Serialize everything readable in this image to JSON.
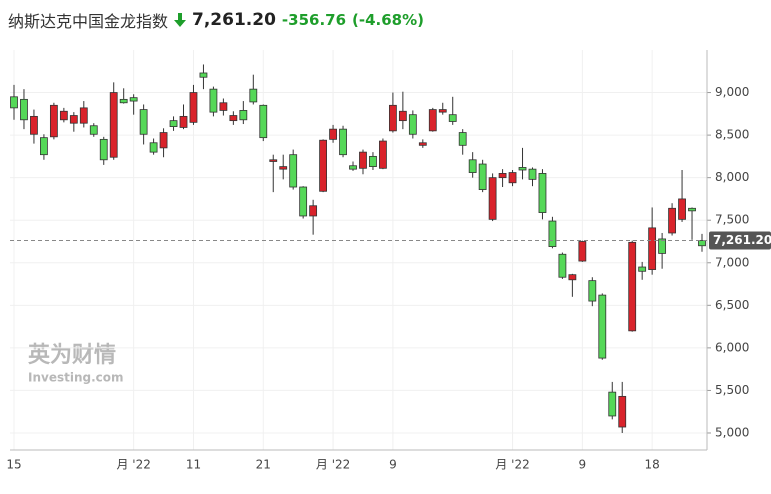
{
  "chart_data": {
    "type": "candlestick",
    "title": "纳斯达克中国金龙指数",
    "change": "-356.76",
    "change_pct": "(-4.68%)",
    "last_price": {
      "value": 7261.2,
      "label": "7,261.20"
    },
    "watermark": {
      "cn": "英为财情",
      "en": "Investing.com"
    },
    "categories": [
      "15",
      null,
      null,
      null,
      null,
      null,
      null,
      null,
      null,
      null,
      null,
      null,
      "月 '22",
      null,
      null,
      null,
      null,
      null,
      "11",
      null,
      null,
      null,
      null,
      null,
      null,
      "21",
      null,
      null,
      null,
      null,
      null,
      null,
      "月 '22",
      null,
      null,
      null,
      null,
      null,
      "9",
      null,
      null,
      null,
      null,
      null,
      null,
      null,
      null,
      null,
      null,
      null,
      "月 '22",
      null,
      null,
      null,
      null,
      null,
      null,
      "9",
      null,
      null,
      null,
      null,
      null,
      null,
      "18",
      null,
      null,
      null,
      null,
      null
    ],
    "open": [
      8820,
      8680,
      8720,
      8270,
      8850,
      8780,
      8730,
      8820,
      8510,
      8210,
      9000,
      8880,
      8900,
      8510,
      8300,
      8530,
      8600,
      8720,
      9000,
      9180,
      8770,
      8880,
      8730,
      8680,
      8890,
      8470,
      8210,
      8130,
      7890,
      7550,
      7670,
      8440,
      8570,
      8270,
      8100,
      8300,
      8130,
      8430,
      8850,
      8780,
      8510,
      8410,
      8800,
      8800,
      8660,
      8380,
      8060,
      7860,
      8000,
      8050,
      8060,
      8090,
      7980,
      7590,
      7190,
      6830,
      6860,
      7250,
      6550,
      5880,
      5200,
      5430,
      7240,
      6900,
      7410,
      7110,
      7640,
      7750,
      7610,
      7200
    ],
    "high": [
      9090,
      9040,
      8800,
      8510,
      8880,
      8820,
      8770,
      8900,
      8640,
      8480,
      9120,
      9050,
      8980,
      8860,
      8460,
      8580,
      8720,
      8860,
      9090,
      9330,
      9070,
      8930,
      8780,
      8900,
      9210,
      8860,
      8270,
      8270,
      8330,
      7900,
      7740,
      8450,
      8620,
      8610,
      8190,
      8330,
      8300,
      8460,
      9000,
      9010,
      8790,
      8450,
      8820,
      8880,
      8950,
      8570,
      8300,
      8210,
      8050,
      8100,
      8090,
      8350,
      8120,
      8100,
      7540,
      7120,
      6870,
      7260,
      6830,
      6640,
      5600,
      5600,
      7260,
      7010,
      7650,
      7350,
      7700,
      8090,
      7650,
      7340
    ],
    "low": [
      8680,
      8570,
      8400,
      8210,
      8450,
      8650,
      8540,
      8590,
      8480,
      8150,
      8210,
      8870,
      8740,
      8390,
      8270,
      8240,
      8550,
      8570,
      8620,
      9040,
      8720,
      8730,
      8620,
      8630,
      8860,
      8430,
      7830,
      7980,
      7860,
      7520,
      7330,
      7830,
      8410,
      8240,
      8080,
      8040,
      8090,
      8100,
      8530,
      8570,
      8460,
      8350,
      8540,
      8740,
      8620,
      8270,
      8000,
      7830,
      7490,
      7890,
      7900,
      7980,
      7900,
      7510,
      7170,
      6810,
      6600,
      7010,
      6490,
      5860,
      5160,
      5000,
      6190,
      6800,
      6860,
      6930,
      7320,
      7480,
      7270,
      7130
    ],
    "close": [
      8950,
      8920,
      8510,
      8470,
      8480,
      8680,
      8640,
      8640,
      8610,
      8450,
      8240,
      8920,
      8940,
      8800,
      8410,
      8350,
      8670,
      8590,
      8650,
      9230,
      9040,
      8790,
      8670,
      8790,
      9040,
      8850,
      8190,
      8100,
      8270,
      7890,
      7550,
      7840,
      8450,
      8570,
      8140,
      8110,
      8250,
      8110,
      8550,
      8670,
      8740,
      8380,
      8550,
      8770,
      8740,
      8530,
      8210,
      8160,
      7510,
      8000,
      7940,
      8120,
      8100,
      8050,
      7490,
      7100,
      6800,
      7020,
      6790,
      6620,
      5480,
      5070,
      6200,
      6950,
      6920,
      7280,
      7350,
      7510,
      7640,
      7261.2
    ],
    "up_color": "#55d858",
    "down_color": "#d9232b",
    "ylim": [
      4800,
      9500
    ],
    "yticks": [
      {
        "value": 5000,
        "label": "5,000"
      },
      {
        "value": 5500,
        "label": "5,500"
      },
      {
        "value": 6000,
        "label": "6,000"
      },
      {
        "value": 6500,
        "label": "6,500"
      },
      {
        "value": 7000,
        "label": "7,000"
      },
      {
        "value": 7500,
        "label": "7,500"
      },
      {
        "value": 8000,
        "label": "8,000"
      },
      {
        "value": 8500,
        "label": "8,500"
      },
      {
        "value": 9000,
        "label": "9,000"
      }
    ],
    "grid": true
  }
}
